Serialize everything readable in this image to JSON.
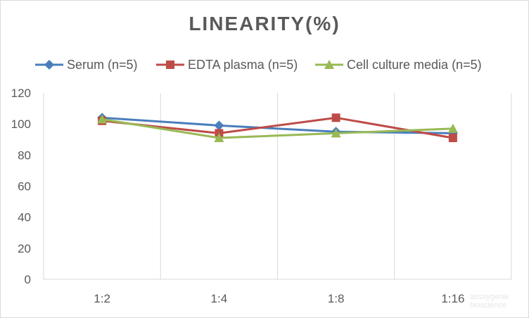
{
  "chart_data": {
    "type": "line",
    "title": "LINEARITY(%)",
    "categories": [
      "1:2",
      "1:4",
      "1:8",
      "1:16"
    ],
    "series": [
      {
        "name": "Serum (n=5)",
        "values": [
          104,
          99,
          95,
          94
        ],
        "color": "#4a7ebb",
        "marker": "diamond"
      },
      {
        "name": "EDTA plasma (n=5)",
        "values": [
          102,
          94,
          104,
          91
        ],
        "color": "#be4b48",
        "marker": "square"
      },
      {
        "name": "Cell culture media (n=5)",
        "values": [
          103,
          91,
          94,
          97
        ],
        "color": "#98b954",
        "marker": "triangle"
      }
    ],
    "ylim": [
      0,
      120
    ],
    "yticks": [
      "0",
      "20",
      "40",
      "60",
      "80",
      "100",
      "120"
    ],
    "grid": "vertical",
    "legend_position": "top"
  },
  "watermark": "assaygenie bioscience"
}
